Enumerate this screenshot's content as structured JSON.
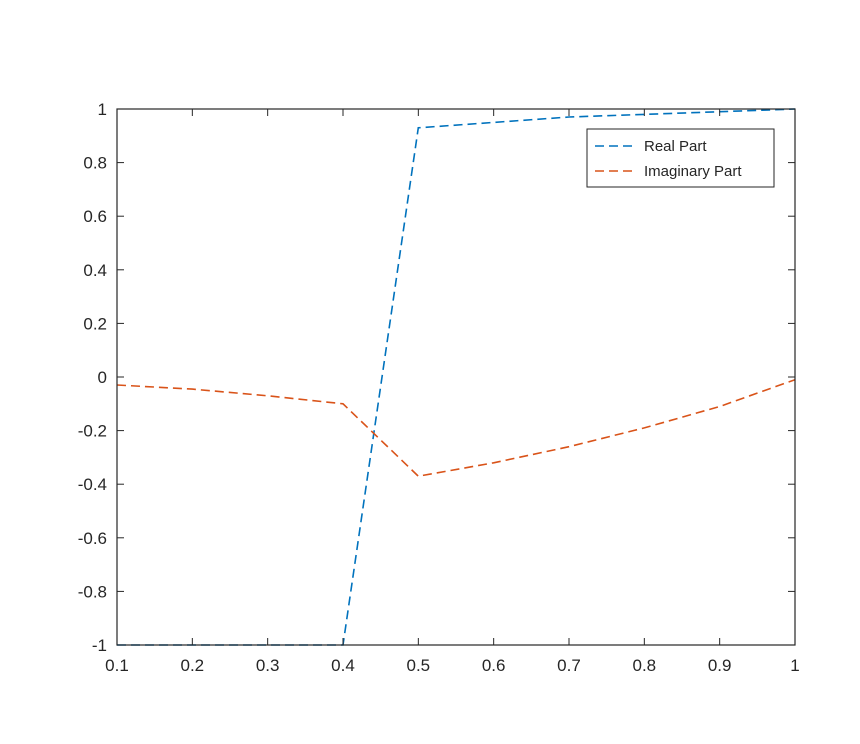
{
  "chart_data": {
    "type": "line",
    "title": "",
    "xlabel": "",
    "ylabel": "",
    "xlim": [
      0.1,
      1
    ],
    "ylim": [
      -1,
      1
    ],
    "xticks": [
      0.1,
      0.2,
      0.3,
      0.4,
      0.5,
      0.6,
      0.7,
      0.8,
      0.9,
      1
    ],
    "xtick_labels": [
      "0.1",
      "0.2",
      "0.3",
      "0.4",
      "0.5",
      "0.6",
      "0.7",
      "0.8",
      "0.9",
      "1"
    ],
    "yticks": [
      -1,
      -0.8,
      -0.6,
      -0.4,
      -0.2,
      0,
      0.2,
      0.4,
      0.6,
      0.8,
      1
    ],
    "ytick_labels": [
      "-1",
      "-0.8",
      "-0.6",
      "-0.4",
      "-0.2",
      "0",
      "0.2",
      "0.4",
      "0.6",
      "0.8",
      "1"
    ],
    "grid": false,
    "legend_position": "top-right",
    "series": [
      {
        "name": "Real Part",
        "color": "#0072BD",
        "line_style": "dashed",
        "x": [
          0.1,
          0.2,
          0.3,
          0.4,
          0.5,
          0.6,
          0.7,
          0.8,
          0.9,
          1
        ],
        "y": [
          -1,
          -1,
          -1,
          -1,
          0.93,
          0.95,
          0.97,
          0.98,
          0.99,
          1
        ]
      },
      {
        "name": "Imaginary Part",
        "color": "#D95319",
        "line_style": "dashed",
        "x": [
          0.1,
          0.2,
          0.3,
          0.4,
          0.5,
          0.6,
          0.7,
          0.8,
          0.9,
          1
        ],
        "y": [
          -0.03,
          -0.045,
          -0.07,
          -0.1,
          -0.37,
          -0.32,
          -0.26,
          -0.19,
          -0.11,
          -0.01
        ]
      }
    ]
  }
}
